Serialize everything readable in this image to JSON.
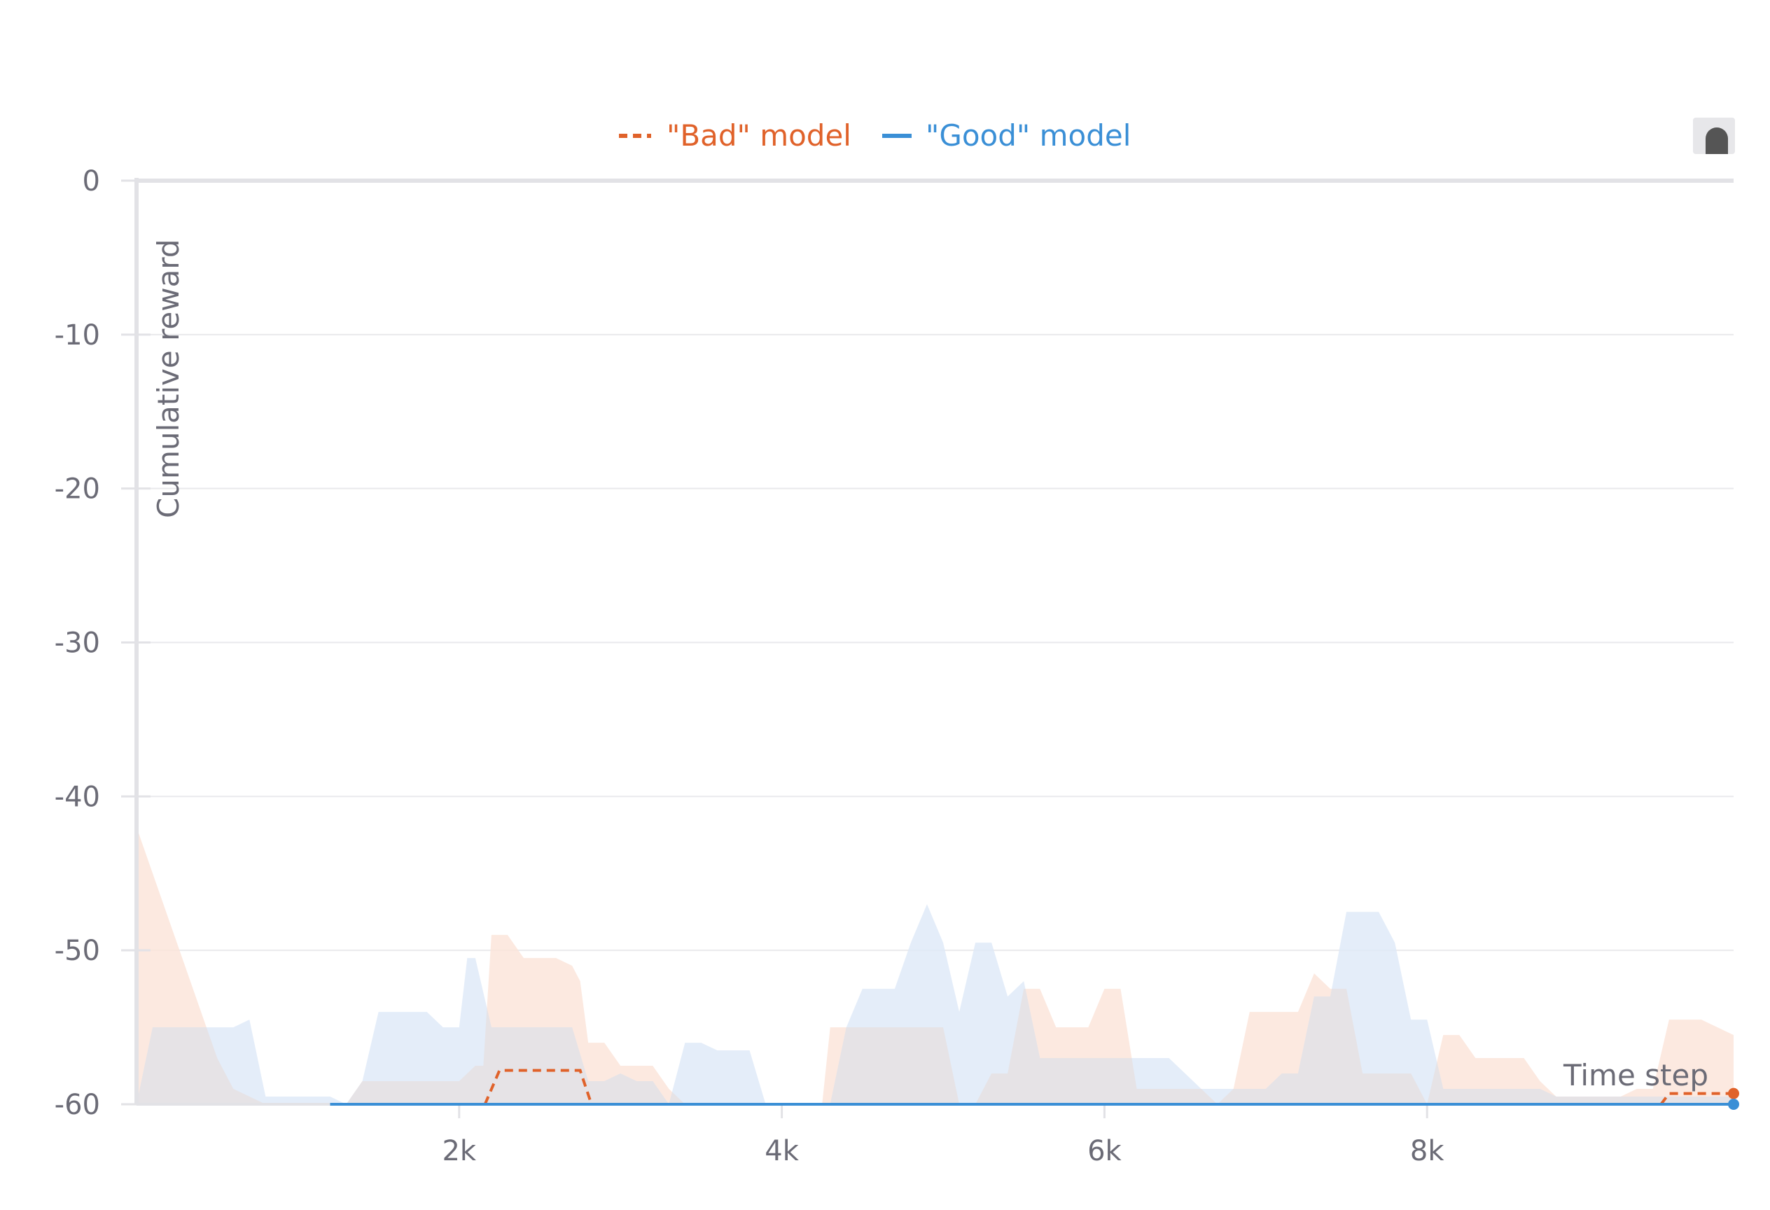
{
  "chart_data": {
    "type": "line",
    "xlabel": "Time step",
    "ylabel": "Cumulative reward",
    "xlim": [
      0,
      9900
    ],
    "ylim": [
      -60,
      0
    ],
    "x_ticks": [
      2000,
      4000,
      6000,
      8000
    ],
    "x_tick_labels": [
      "2k",
      "4k",
      "6k",
      "8k"
    ],
    "y_ticks": [
      0,
      -10,
      -20,
      -30,
      -40,
      -50,
      -60
    ],
    "y_tick_labels": [
      "0",
      "-10",
      "-20",
      "-30",
      "-40",
      "-50",
      "-60"
    ],
    "grid": true,
    "legend_position": "top-center",
    "series": [
      {
        "name": "\"Bad\" model",
        "color": "#e0622a",
        "dash": "dashed",
        "band_color": "#fbe3d8",
        "x": [
          2160,
          2250,
          2750,
          2820,
          6800,
          7400,
          8100,
          8700,
          9450,
          9500,
          9900
        ],
        "y": [
          -60,
          -57.8,
          -57.8,
          -60,
          -60,
          -60,
          -60,
          -60,
          -60,
          -59.3,
          -59.3
        ],
        "visible": [
          true,
          true,
          true,
          true,
          false,
          true,
          false,
          true,
          false,
          true,
          true
        ],
        "band_x": [
          0,
          100,
          200,
          300,
          400,
          500,
          600,
          700,
          800,
          900,
          1000,
          1100,
          1200,
          1300,
          1400,
          1500,
          1600,
          1700,
          1800,
          1900,
          2000,
          2100,
          2150,
          2200,
          2300,
          2400,
          2500,
          2600,
          2700,
          2750,
          2800,
          2900,
          3000,
          3100,
          3200,
          3300,
          3400,
          3500,
          3600,
          3700,
          3800,
          3900,
          4000,
          4100,
          4200,
          4250,
          4300,
          4400,
          4500,
          4600,
          4700,
          4800,
          4900,
          5000,
          5100,
          5200,
          5300,
          5400,
          5500,
          5600,
          5700,
          5800,
          5900,
          6000,
          6100,
          6200,
          6300,
          6400,
          6500,
          6600,
          6700,
          6800,
          6900,
          7000,
          7100,
          7200,
          7300,
          7400,
          7500,
          7600,
          7700,
          7800,
          7900,
          8000,
          8100,
          8200,
          8300,
          8400,
          8500,
          8600,
          8700,
          8800,
          8900,
          9000,
          9100,
          9200,
          9300,
          9400,
          9500,
          9600,
          9700,
          9800,
          9900
        ],
        "band_low": [
          -60,
          -60,
          -60,
          -60,
          -60,
          -60,
          -60,
          -60,
          -60,
          -60,
          -60,
          -60,
          -60,
          -60,
          -60,
          -60,
          -60,
          -60,
          -60,
          -60,
          -60,
          -60,
          -60,
          -60,
          -60,
          -60,
          -60,
          -60,
          -60,
          -60,
          -60,
          -60,
          -60,
          -60,
          -60,
          -60,
          -60,
          -60,
          -60,
          -60,
          -60,
          -60,
          -60,
          -60,
          -60,
          -60,
          -60,
          -60,
          -60,
          -60,
          -60,
          -60,
          -60,
          -60,
          -60,
          -60,
          -60,
          -60,
          -60,
          -60,
          -60,
          -60,
          -60,
          -60,
          -60,
          -60,
          -60,
          -60,
          -60,
          -60,
          -60,
          -60,
          -60,
          -60,
          -60,
          -60,
          -60,
          -60,
          -60,
          -60,
          -60,
          -60,
          -60,
          -60,
          -60,
          -60,
          -60,
          -60,
          -60,
          -60,
          -60,
          -60,
          -60,
          -60,
          -60,
          -60,
          -60,
          -60,
          -60,
          -60,
          -60,
          -60,
          -60
        ],
        "band_high": [
          -42,
          -45,
          -48,
          -51,
          -54,
          -57,
          -59,
          -59.5,
          -60,
          -60,
          -60,
          -60,
          -60,
          -60,
          -58.5,
          -58.5,
          -58.5,
          -58.5,
          -58.5,
          -58.5,
          -58.5,
          -57.5,
          -57.5,
          -49,
          -49,
          -50.5,
          -50.5,
          -50.5,
          -51,
          -52,
          -56,
          -56,
          -57.5,
          -57.5,
          -57.5,
          -59,
          -60,
          -60,
          -60,
          -60,
          -60,
          -60,
          -60,
          -60,
          -60,
          -60,
          -55,
          -55,
          -55,
          -55,
          -55,
          -55,
          -55,
          -55,
          -60,
          -60,
          -58,
          -58,
          -52.5,
          -52.5,
          -55,
          -55,
          -55,
          -52.5,
          -52.5,
          -59,
          -59,
          -59,
          -59,
          -59,
          -60,
          -59,
          -54,
          -54,
          -54,
          -54,
          -51.5,
          -52.5,
          -52.5,
          -58,
          -58,
          -58,
          -58,
          -60,
          -55.5,
          -55.5,
          -57,
          -57,
          -57,
          -57,
          -58.5,
          -59.5,
          -59.5,
          -59.5,
          -59.5,
          -59.5,
          -59,
          -59,
          -54.5,
          -54.5,
          -54.5,
          -55,
          -55.5
        ]
      },
      {
        "name": "\"Good\" model",
        "color": "#3a8fd6",
        "dash": "solid",
        "band_color": "#dde9f8",
        "x": [
          600,
          1200,
          9900
        ],
        "y": [
          -60,
          -60,
          -60
        ],
        "visible": [
          true,
          false,
          true
        ],
        "band_x": [
          0,
          100,
          200,
          300,
          400,
          500,
          600,
          700,
          800,
          900,
          1000,
          1100,
          1200,
          1300,
          1400,
          1500,
          1600,
          1700,
          1800,
          1900,
          2000,
          2050,
          2100,
          2200,
          2300,
          2400,
          2500,
          2600,
          2700,
          2800,
          2900,
          3000,
          3100,
          3200,
          3300,
          3400,
          3500,
          3600,
          3700,
          3800,
          3900,
          4000,
          4100,
          4200,
          4300,
          4400,
          4500,
          4600,
          4700,
          4800,
          4900,
          5000,
          5100,
          5200,
          5300,
          5400,
          5500,
          5600,
          5700,
          5800,
          5900,
          6000,
          6100,
          6200,
          6300,
          6400,
          6500,
          6600,
          6700,
          6800,
          6900,
          7000,
          7100,
          7200,
          7300,
          7400,
          7500,
          7600,
          7700,
          7800,
          7900,
          8000,
          8100,
          8200,
          8300,
          8400,
          8500,
          8600,
          8700,
          8800,
          8900,
          9000,
          9100,
          9200,
          9300,
          9400,
          9500,
          9600,
          9700,
          9800,
          9900
        ],
        "band_low": [
          -60,
          -60,
          -60,
          -60,
          -60,
          -60,
          -60,
          -60,
          -60,
          -60,
          -60,
          -60,
          -60,
          -60,
          -60,
          -60,
          -60,
          -60,
          -60,
          -60,
          -60,
          -60,
          -60,
          -60,
          -60,
          -60,
          -60,
          -60,
          -60,
          -60,
          -60,
          -60,
          -60,
          -60,
          -60,
          -60,
          -60,
          -60,
          -60,
          -60,
          -60,
          -60,
          -60,
          -60,
          -60,
          -60,
          -60,
          -60,
          -60,
          -60,
          -60,
          -60,
          -60,
          -60,
          -60,
          -60,
          -60,
          -60,
          -60,
          -60,
          -60,
          -60,
          -60,
          -60,
          -60,
          -60,
          -60,
          -60,
          -60,
          -60,
          -60,
          -60,
          -60,
          -60,
          -60,
          -60,
          -60,
          -60,
          -60,
          -60,
          -60,
          -60,
          -60,
          -60,
          -60,
          -60,
          -60,
          -60,
          -60,
          -60,
          -60,
          -60,
          -60,
          -60,
          -60,
          -60,
          -60,
          -60,
          -60,
          -60,
          -60
        ],
        "band_high": [
          -60,
          -55,
          -55,
          -55,
          -55,
          -55,
          -55,
          -54.5,
          -59.5,
          -59.5,
          -59.5,
          -59.5,
          -59.5,
          -60,
          -58.5,
          -54,
          -54,
          -54,
          -54,
          -55,
          -55,
          -50.5,
          -50.5,
          -55,
          -55,
          -55,
          -55,
          -55,
          -55,
          -58.5,
          -58.5,
          -58,
          -58.5,
          -58.5,
          -60,
          -56,
          -56,
          -56.5,
          -56.5,
          -56.5,
          -60,
          -60,
          -60,
          -60,
          -60,
          -55,
          -52.5,
          -52.5,
          -52.5,
          -49.5,
          -47,
          -49.5,
          -54,
          -49.5,
          -49.5,
          -53,
          -52,
          -57,
          -57,
          -57,
          -57,
          -57,
          -57,
          -57,
          -57,
          -57,
          -58,
          -59,
          -59,
          -59,
          -59,
          -59,
          -58,
          -58,
          -53,
          -53,
          -47.5,
          -47.5,
          -47.5,
          -49.5,
          -54.5,
          -54.5,
          -59,
          -59,
          -59,
          -59,
          -59,
          -59,
          -59,
          -59.5,
          -59.5,
          -59.5,
          -59.5,
          -59.5,
          -59.5,
          -59.5,
          -59.5,
          -59.5,
          -59.5,
          -59.5,
          -59.5
        ]
      }
    ]
  },
  "legend": {
    "bad_label": "\"Bad\" model",
    "good_label": "\"Good\" model"
  },
  "colors": {
    "bad": "#e0622a",
    "good": "#3a8fd6",
    "overlap": "#e6e3e6",
    "grid": "#e9e9ec",
    "axis": "#e2e2e6",
    "text": "#6b6b76"
  }
}
